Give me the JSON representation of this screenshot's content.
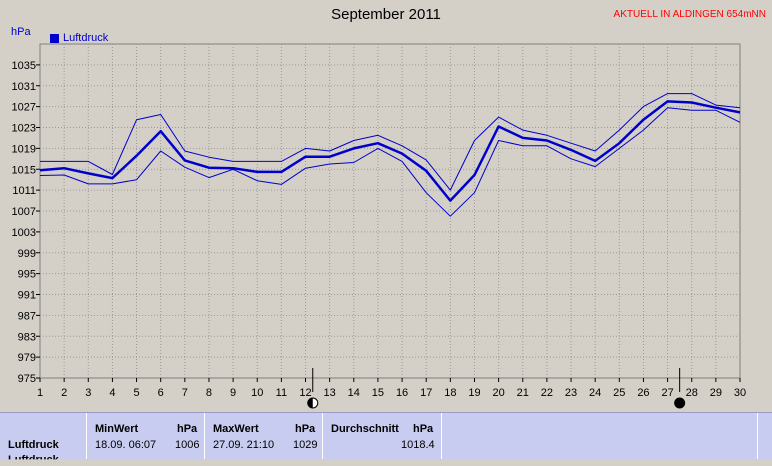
{
  "header": {
    "title": "September 2011",
    "location": "AKTUELL IN ALDINGEN 654mNN",
    "unit": "hPa"
  },
  "legend": {
    "label": "Luftdruck",
    "color": "#0000cc"
  },
  "chart_data": {
    "type": "line",
    "title": "September 2011",
    "ylabel": "hPa",
    "x": [
      1,
      2,
      3,
      4,
      5,
      6,
      7,
      8,
      9,
      10,
      11,
      12,
      13,
      14,
      15,
      16,
      17,
      18,
      19,
      20,
      21,
      22,
      23,
      24,
      25,
      26,
      27,
      28,
      29,
      30
    ],
    "xticks": [
      "1",
      "2",
      "3",
      "4",
      "5",
      "6",
      "7",
      "8",
      "9",
      "10",
      "11",
      "12",
      "13",
      "14",
      "15",
      "16",
      "17",
      "18",
      "19",
      "20",
      "21",
      "22",
      "23",
      "24",
      "25",
      "26",
      "27",
      "28",
      "29",
      "30"
    ],
    "ylim": [
      975,
      1039
    ],
    "yticks": [
      "975",
      "979",
      "983",
      "987",
      "991",
      "995",
      "999",
      "1003",
      "1007",
      "1011",
      "1015",
      "1019",
      "1023",
      "1027",
      "1031",
      "1035"
    ],
    "grid": true,
    "legend_position": "top-left",
    "series": [
      {
        "name": "Luftdruck",
        "role": "mean",
        "color": "#0000cc",
        "values": [
          1014.8,
          1015.2,
          1014.2,
          1013.3,
          1017.6,
          1022.3,
          1016.7,
          1015.3,
          1015.2,
          1014.5,
          1014.5,
          1017.4,
          1017.4,
          1019.0,
          1020.0,
          1018.0,
          1014.7,
          1009.0,
          1013.9,
          1023.2,
          1021.0,
          1020.5,
          1018.7,
          1016.6,
          1020.0,
          1024.5,
          1028.0,
          1027.8,
          1026.8,
          1025.9
        ]
      },
      {
        "name": "Max",
        "role": "max",
        "color": "#0000cc",
        "values": [
          1016.5,
          1016.5,
          1016.5,
          1014.0,
          1024.5,
          1025.5,
          1018.5,
          1017.3,
          1016.5,
          1016.5,
          1016.5,
          1019.0,
          1018.5,
          1020.5,
          1021.5,
          1019.5,
          1016.8,
          1011.0,
          1020.5,
          1025.0,
          1022.5,
          1021.5,
          1020.0,
          1018.5,
          1022.5,
          1027.0,
          1029.5,
          1029.5,
          1027.3,
          1026.8
        ]
      },
      {
        "name": "Min",
        "role": "min",
        "color": "#0000cc",
        "values": [
          1013.8,
          1013.9,
          1012.2,
          1012.2,
          1013.0,
          1018.5,
          1015.4,
          1013.4,
          1015.0,
          1012.8,
          1012.1,
          1015.2,
          1016.0,
          1016.3,
          1019.0,
          1016.5,
          1010.5,
          1006.0,
          1010.5,
          1020.5,
          1019.5,
          1019.5,
          1017.0,
          1015.5,
          1019.0,
          1022.5,
          1026.8,
          1026.3,
          1026.3,
          1024.0
        ]
      }
    ],
    "markers": [
      {
        "day": 12.3,
        "type": "first-quarter-moon"
      },
      {
        "day": 27.5,
        "type": "new-moon"
      }
    ]
  },
  "stats": {
    "row_label": "Luftdruck",
    "row_label_next": "Luftdruck",
    "columns": [
      {
        "header": "MinWert",
        "unit": "hPa",
        "date": "18.09.  06:07",
        "value": "1006"
      },
      {
        "header": "MaxWert",
        "unit": "hPa",
        "date": "27.09.  21:10",
        "value": "1029"
      },
      {
        "header": "Durchschnitt",
        "unit": "hPa",
        "date": "",
        "value": "1018.4"
      }
    ]
  }
}
